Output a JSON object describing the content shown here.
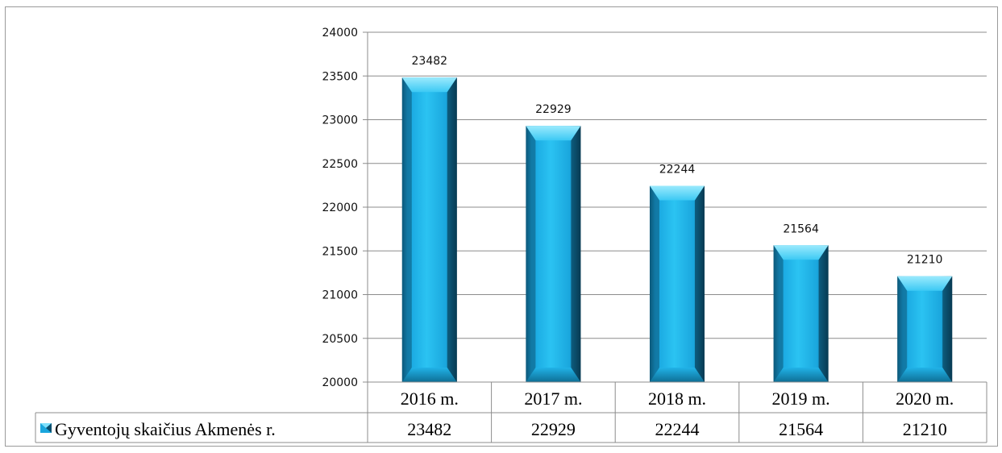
{
  "chart_data": {
    "type": "bar",
    "categories": [
      "2016 m.",
      "2017 m.",
      "2018 m.",
      "2019 m.",
      "2020 m."
    ],
    "series": [
      {
        "name": "Gyventojų skaičius Akmenės r.",
        "values": [
          23482,
          22929,
          22244,
          21564,
          21210
        ]
      }
    ],
    "ylim": [
      20000,
      24000
    ],
    "yticks": [
      20000,
      20500,
      21000,
      21500,
      22000,
      22500,
      23000,
      23500,
      24000
    ],
    "grid": true,
    "data_labels": true,
    "legend": "data-table-left",
    "data_table": true,
    "bar_color": "#1aa6dd",
    "bar_highlight": "#7fe0fb",
    "bar_shadow": "#0a4f6e"
  }
}
